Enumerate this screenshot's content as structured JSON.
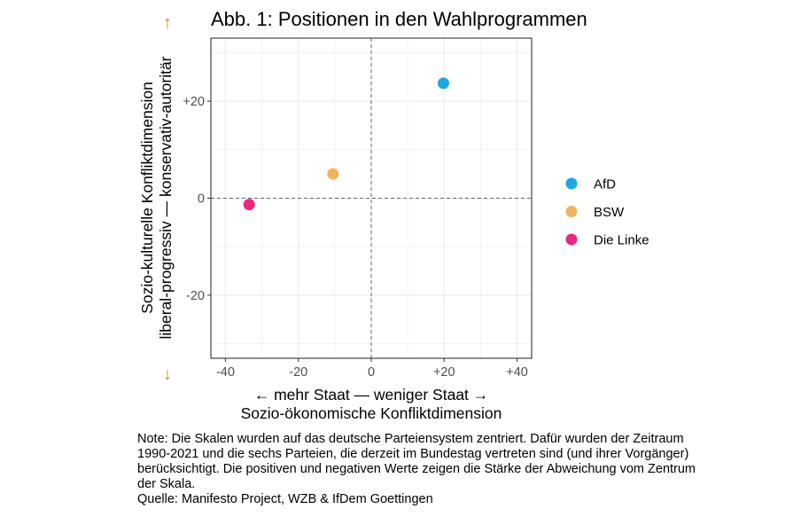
{
  "chart_data": {
    "type": "scatter",
    "title": "Abb. 1: Positionen in den Wahlprogrammen",
    "xlabel_line1": "← mehr Staat — weniger Staat →",
    "xlabel_line2": "Sozio-ökonomische Konfliktdimension",
    "ylabel_line1": "Sozio-kulturelle Konfliktdimension",
    "ylabel_line2": "liberal-progressiv — konservativ-autoritär",
    "yarrow_up": "↑",
    "yarrow_down": "↓",
    "xlim": [
      -44,
      44
    ],
    "ylim": [
      -33,
      33
    ],
    "xticks": [
      {
        "v": -40,
        "label": "-40"
      },
      {
        "v": -20,
        "label": "-20"
      },
      {
        "v": 0,
        "label": "0"
      },
      {
        "v": 20,
        "label": "+20"
      },
      {
        "v": 40,
        "label": "+40"
      }
    ],
    "yticks": [
      {
        "v": -20,
        "label": "-20"
      },
      {
        "v": 0,
        "label": "0"
      },
      {
        "v": 20,
        "label": "+20"
      }
    ],
    "grid": true,
    "reference_lines": {
      "x": 0,
      "y": 0,
      "style": "dashed"
    },
    "legend_position": "right",
    "series": [
      {
        "name": "AfD",
        "color": "#1ea7e1",
        "x": 19.8,
        "y": 23.7
      },
      {
        "name": "BSW",
        "color": "#f0b35e",
        "x": -10.5,
        "y": 5.0
      },
      {
        "name": "Die Linke",
        "color": "#e8277f",
        "x": -33.5,
        "y": -1.3
      }
    ],
    "arrow_color": "#d9822b"
  },
  "note": {
    "text": "Note: Die Skalen wurden auf das deutsche Parteiensystem zentriert. Dafür wurden der Zeitraum 1990-2021 und die sechs Parteien, die derzeit im Bundestag vertreten sind (und ihrer Vorgänger) berücksichtigt. Die positiven und negativen Werte zeigen die Stärke der Abweichung vom Zentrum der Skala.",
    "source": "Quelle: Manifesto Project, WZB & IfDem Goettingen"
  }
}
